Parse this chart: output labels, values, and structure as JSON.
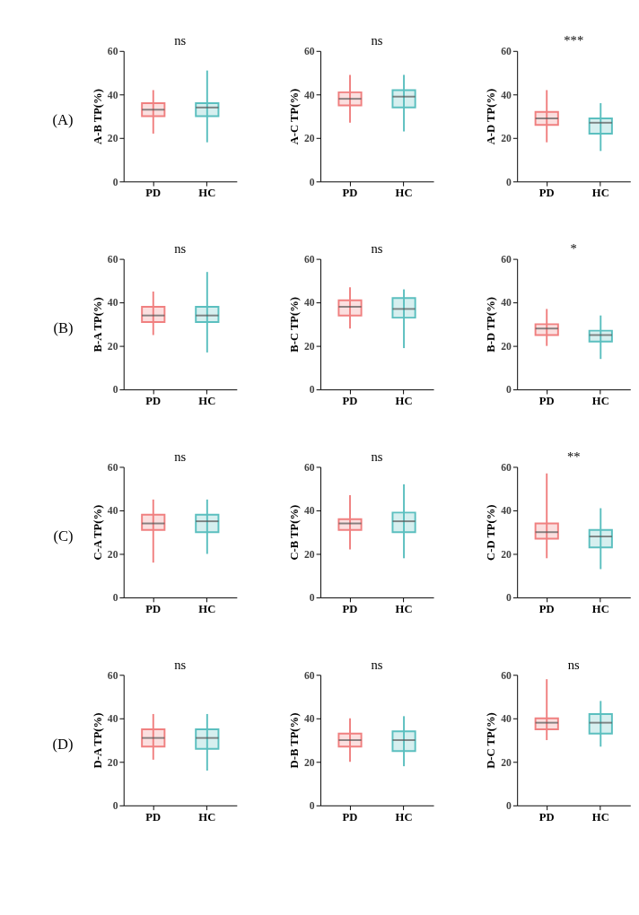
{
  "chart_data": [
    {
      "type": "box",
      "categories": [
        "PD",
        "HC"
      ],
      "colors": [
        "#f08080",
        "#5bbfbf"
      ],
      "ylabel": "A-B TP(%)",
      "ylim": [
        0,
        60
      ],
      "yticks": [
        0,
        20,
        40,
        60
      ],
      "grid": false,
      "annotations": [
        "(A)",
        "ns"
      ],
      "boxes": [
        {
          "low": 22,
          "q1": 30,
          "median": 33,
          "q3": 36,
          "high": 42
        },
        {
          "low": 18,
          "q1": 30,
          "median": 34,
          "q3": 36,
          "high": 51
        }
      ]
    },
    {
      "type": "box",
      "categories": [
        "PD",
        "HC"
      ],
      "colors": [
        "#f08080",
        "#5bbfbf"
      ],
      "ylabel": "A-C TP(%)",
      "ylim": [
        0,
        60
      ],
      "yticks": [
        0,
        20,
        40,
        60
      ],
      "grid": false,
      "annotations": [
        "ns"
      ],
      "boxes": [
        {
          "low": 27,
          "q1": 35,
          "median": 38,
          "q3": 41,
          "high": 49
        },
        {
          "low": 23,
          "q1": 34,
          "median": 39,
          "q3": 42,
          "high": 49
        }
      ]
    },
    {
      "type": "box",
      "categories": [
        "PD",
        "HC"
      ],
      "colors": [
        "#f08080",
        "#5bbfbf"
      ],
      "ylabel": "A-D TP(%)",
      "ylim": [
        0,
        60
      ],
      "yticks": [
        0,
        20,
        40,
        60
      ],
      "grid": false,
      "annotations": [
        "***"
      ],
      "boxes": [
        {
          "low": 18,
          "q1": 26,
          "median": 29,
          "q3": 32,
          "high": 42
        },
        {
          "low": 14,
          "q1": 22,
          "median": 27,
          "q3": 29,
          "high": 36
        }
      ]
    },
    {
      "type": "box",
      "categories": [
        "PD",
        "HC"
      ],
      "colors": [
        "#f08080",
        "#5bbfbf"
      ],
      "ylabel": "B-A TP(%)",
      "ylim": [
        0,
        60
      ],
      "yticks": [
        0,
        20,
        40,
        60
      ],
      "grid": false,
      "annotations": [
        "(B)",
        "ns"
      ],
      "boxes": [
        {
          "low": 25,
          "q1": 31,
          "median": 34,
          "q3": 38,
          "high": 45
        },
        {
          "low": 17,
          "q1": 31,
          "median": 34,
          "q3": 38,
          "high": 54
        }
      ]
    },
    {
      "type": "box",
      "categories": [
        "PD",
        "HC"
      ],
      "colors": [
        "#f08080",
        "#5bbfbf"
      ],
      "ylabel": "B-C TP(%)",
      "ylim": [
        0,
        60
      ],
      "yticks": [
        0,
        20,
        40,
        60
      ],
      "grid": false,
      "annotations": [
        "ns"
      ],
      "boxes": [
        {
          "low": 28,
          "q1": 34,
          "median": 38,
          "q3": 41,
          "high": 47
        },
        {
          "low": 19,
          "q1": 33,
          "median": 37,
          "q3": 42,
          "high": 46
        }
      ]
    },
    {
      "type": "box",
      "categories": [
        "PD",
        "HC"
      ],
      "colors": [
        "#f08080",
        "#5bbfbf"
      ],
      "ylabel": "B-D TP(%)",
      "ylim": [
        0,
        60
      ],
      "yticks": [
        0,
        20,
        40,
        60
      ],
      "grid": false,
      "annotations": [
        "*"
      ],
      "boxes": [
        {
          "low": 20,
          "q1": 25,
          "median": 28,
          "q3": 30,
          "high": 37
        },
        {
          "low": 14,
          "q1": 22,
          "median": 25,
          "q3": 27,
          "high": 34
        }
      ]
    },
    {
      "type": "box",
      "categories": [
        "PD",
        "HC"
      ],
      "colors": [
        "#f08080",
        "#5bbfbf"
      ],
      "ylabel": "C-A TP(%)",
      "ylim": [
        0,
        60
      ],
      "yticks": [
        0,
        20,
        40,
        60
      ],
      "grid": false,
      "annotations": [
        "(C)",
        "ns"
      ],
      "boxes": [
        {
          "low": 16,
          "q1": 31,
          "median": 34,
          "q3": 38,
          "high": 45
        },
        {
          "low": 20,
          "q1": 30,
          "median": 35,
          "q3": 38,
          "high": 45
        }
      ]
    },
    {
      "type": "box",
      "categories": [
        "PD",
        "HC"
      ],
      "colors": [
        "#f08080",
        "#5bbfbf"
      ],
      "ylabel": "C-B TP(%)",
      "ylim": [
        0,
        60
      ],
      "yticks": [
        0,
        20,
        40,
        60
      ],
      "grid": false,
      "annotations": [
        "ns"
      ],
      "boxes": [
        {
          "low": 22,
          "q1": 31,
          "median": 34,
          "q3": 36,
          "high": 47
        },
        {
          "low": 18,
          "q1": 30,
          "median": 35,
          "q3": 39,
          "high": 52
        }
      ]
    },
    {
      "type": "box",
      "categories": [
        "PD",
        "HC"
      ],
      "colors": [
        "#f08080",
        "#5bbfbf"
      ],
      "ylabel": "C-D TP(%)",
      "ylim": [
        0,
        60
      ],
      "yticks": [
        0,
        20,
        40,
        60
      ],
      "grid": false,
      "annotations": [
        "**"
      ],
      "boxes": [
        {
          "low": 18,
          "q1": 27,
          "median": 30,
          "q3": 34,
          "high": 57
        },
        {
          "low": 13,
          "q1": 23,
          "median": 28,
          "q3": 31,
          "high": 41
        }
      ]
    },
    {
      "type": "box",
      "categories": [
        "PD",
        "HC"
      ],
      "colors": [
        "#f08080",
        "#5bbfbf"
      ],
      "ylabel": "D-A TP(%)",
      "ylim": [
        0,
        60
      ],
      "yticks": [
        0,
        20,
        40,
        60
      ],
      "grid": false,
      "annotations": [
        "(D)",
        "ns"
      ],
      "boxes": [
        {
          "low": 21,
          "q1": 27,
          "median": 31,
          "q3": 35,
          "high": 42
        },
        {
          "low": 16,
          "q1": 26,
          "median": 31,
          "q3": 35,
          "high": 42
        }
      ]
    },
    {
      "type": "box",
      "categories": [
        "PD",
        "HC"
      ],
      "colors": [
        "#f08080",
        "#5bbfbf"
      ],
      "ylabel": "D-B TP(%)",
      "ylim": [
        0,
        60
      ],
      "yticks": [
        0,
        20,
        40,
        60
      ],
      "grid": false,
      "annotations": [
        "ns"
      ],
      "boxes": [
        {
          "low": 20,
          "q1": 27,
          "median": 30,
          "q3": 33,
          "high": 40
        },
        {
          "low": 18,
          "q1": 25,
          "median": 30,
          "q3": 34,
          "high": 41
        }
      ]
    },
    {
      "type": "box",
      "categories": [
        "PD",
        "HC"
      ],
      "colors": [
        "#f08080",
        "#5bbfbf"
      ],
      "ylabel": "D-C TP(%)",
      "ylim": [
        0,
        60
      ],
      "yticks": [
        0,
        20,
        40,
        60
      ],
      "grid": false,
      "annotations": [
        "ns"
      ],
      "boxes": [
        {
          "low": 30,
          "q1": 35,
          "median": 38,
          "q3": 40,
          "high": 58
        },
        {
          "low": 27,
          "q1": 33,
          "median": 38,
          "q3": 42,
          "high": 48
        }
      ]
    }
  ]
}
